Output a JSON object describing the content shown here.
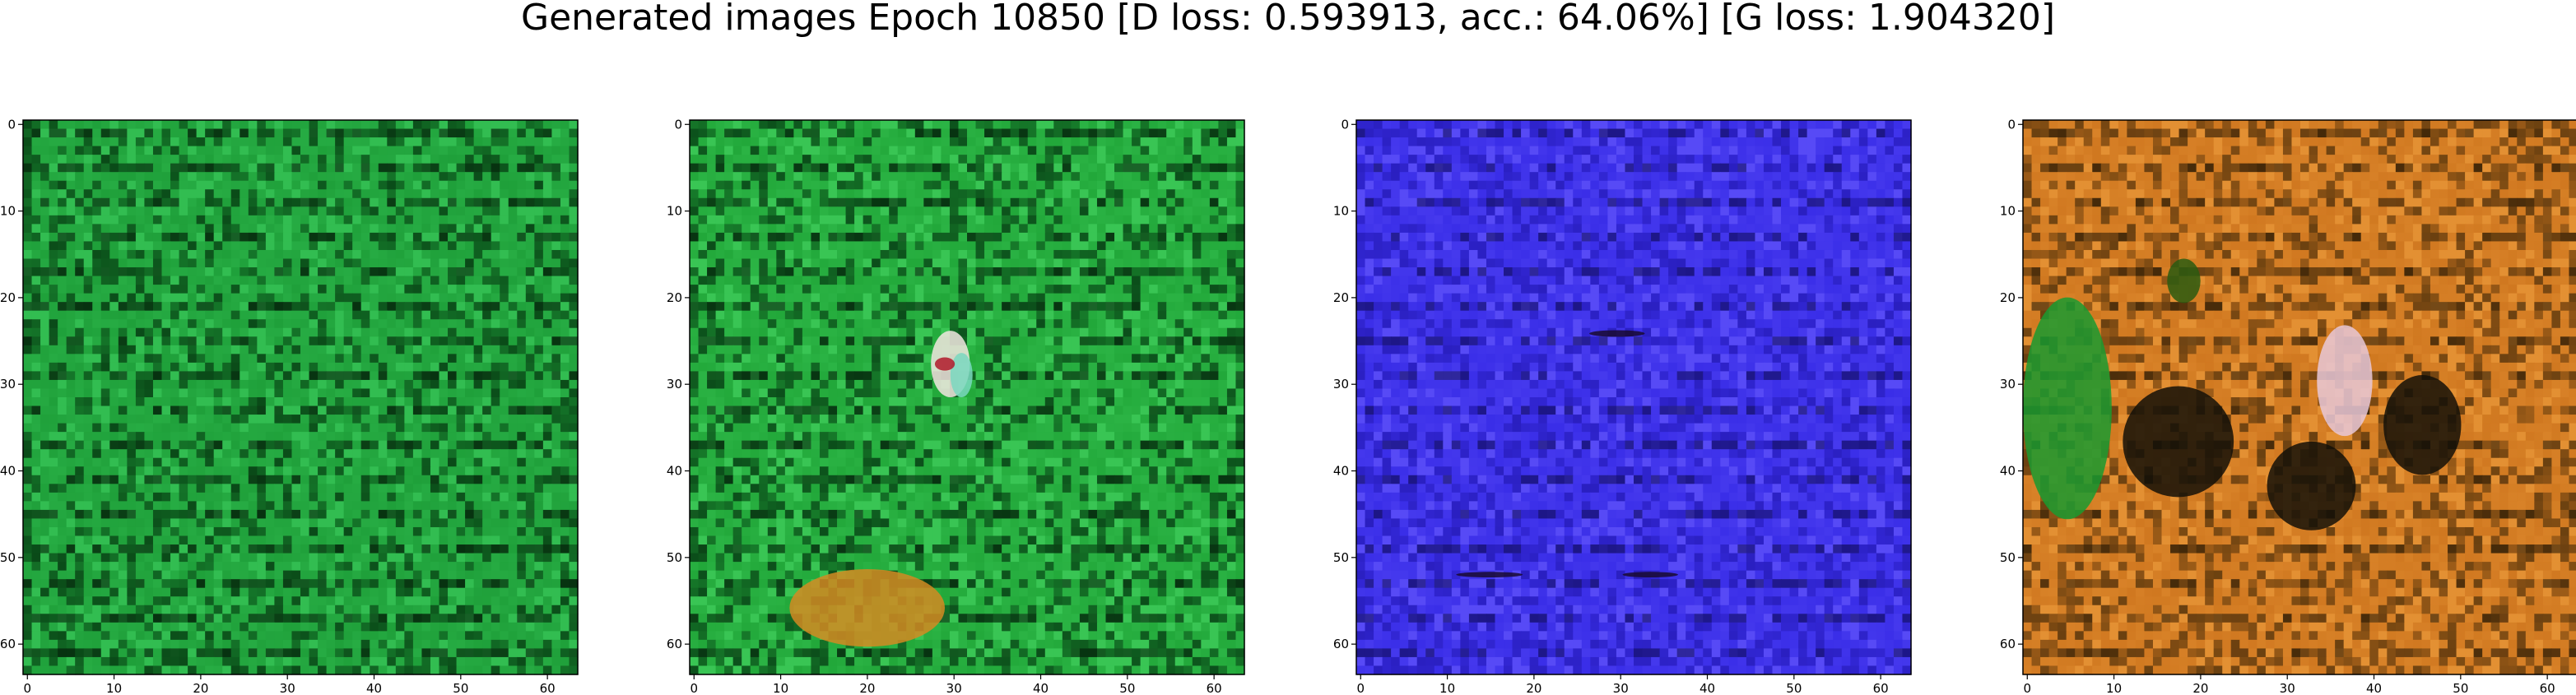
{
  "figure": {
    "title": "Generated images Epoch 10850 [D loss: 0.593913, acc.: 64.06%] [G loss: 1.904320]"
  },
  "panels": [
    {
      "name": "generated-image-1",
      "x_ticks": [
        "0",
        "10",
        "20",
        "30",
        "40",
        "50",
        "60"
      ],
      "y_ticks": [
        "0",
        "10",
        "20",
        "30",
        "40",
        "50",
        "60"
      ],
      "palette": {
        "base": "#1fa03a",
        "light": "#3ed060",
        "dark": "#0a4a18",
        "black": "#05200a"
      },
      "features": []
    },
    {
      "name": "generated-image-2",
      "x_ticks": [
        "0",
        "10",
        "20",
        "30",
        "40",
        "50",
        "60"
      ],
      "y_ticks": [
        "0",
        "10",
        "20",
        "30",
        "40",
        "50",
        "60"
      ],
      "palette": {
        "base": "#22a83a",
        "light": "#48d866",
        "dark": "#0b4d1a",
        "black": "#05220b"
      },
      "features": [
        {
          "kind": "blob",
          "cx": 0.32,
          "cy": 0.88,
          "rx": 0.14,
          "ry": 0.07,
          "color": "#d48a22"
        },
        {
          "kind": "blob",
          "cx": 0.47,
          "cy": 0.44,
          "rx": 0.035,
          "ry": 0.06,
          "color": "#f2e6e0"
        },
        {
          "kind": "blob",
          "cx": 0.49,
          "cy": 0.46,
          "rx": 0.02,
          "ry": 0.04,
          "color": "#7ad8c0"
        },
        {
          "kind": "blob",
          "cx": 0.46,
          "cy": 0.44,
          "rx": 0.018,
          "ry": 0.012,
          "color": "#b01a2a"
        }
      ]
    },
    {
      "name": "generated-image-3",
      "x_ticks": [
        "0",
        "10",
        "20",
        "30",
        "40",
        "50",
        "60"
      ],
      "y_ticks": [
        "0",
        "10",
        "20",
        "30",
        "40",
        "50",
        "60"
      ],
      "palette": {
        "base": "#3a2ee8",
        "light": "#6a5cff",
        "dark": "#2a1fc0",
        "black": "#141060"
      },
      "features": [
        {
          "kind": "streak",
          "cx": 0.47,
          "cy": 0.385,
          "rx": 0.05,
          "ry": 0.006,
          "color": "#1a0a30"
        },
        {
          "kind": "streak",
          "cx": 0.24,
          "cy": 0.82,
          "rx": 0.06,
          "ry": 0.005,
          "color": "#1a0a30"
        },
        {
          "kind": "streak",
          "cx": 0.53,
          "cy": 0.82,
          "rx": 0.05,
          "ry": 0.005,
          "color": "#1a0a30"
        }
      ]
    },
    {
      "name": "generated-image-4",
      "x_ticks": [
        "0",
        "10",
        "20",
        "30",
        "40",
        "50",
        "60"
      ],
      "y_ticks": [
        "0",
        "10",
        "20",
        "30",
        "40",
        "50",
        "60"
      ],
      "palette": {
        "base": "#d07820",
        "light": "#f0a040",
        "dark": "#6a4010",
        "black": "#2a1a05"
      },
      "features": [
        {
          "kind": "blob",
          "cx": 0.08,
          "cy": 0.52,
          "rx": 0.08,
          "ry": 0.2,
          "color": "#1a9a30"
        },
        {
          "kind": "blob",
          "cx": 0.28,
          "cy": 0.58,
          "rx": 0.1,
          "ry": 0.1,
          "color": "#141008"
        },
        {
          "kind": "blob",
          "cx": 0.52,
          "cy": 0.66,
          "rx": 0.08,
          "ry": 0.08,
          "color": "#141008"
        },
        {
          "kind": "blob",
          "cx": 0.72,
          "cy": 0.55,
          "rx": 0.07,
          "ry": 0.09,
          "color": "#141008"
        },
        {
          "kind": "blob",
          "cx": 0.58,
          "cy": 0.47,
          "rx": 0.05,
          "ry": 0.1,
          "color": "#e8c8d8"
        },
        {
          "kind": "blob",
          "cx": 0.29,
          "cy": 0.29,
          "rx": 0.03,
          "ry": 0.04,
          "color": "#2a5a10"
        }
      ]
    }
  ]
}
